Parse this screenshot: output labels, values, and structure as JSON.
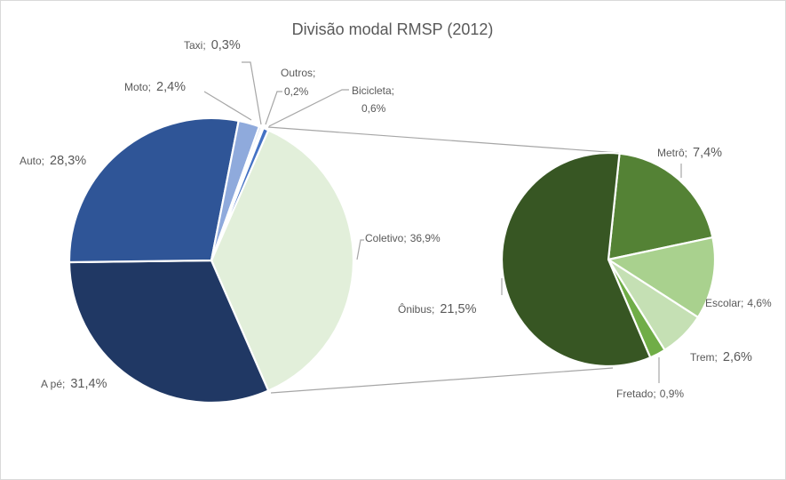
{
  "chart_data": {
    "type": "pie",
    "subtype": "pie-of-pie",
    "title": "Divisão modal RMSP (2012)",
    "unit": "%",
    "primary": {
      "categories": [
        "Coletivo",
        "A pé",
        "Auto",
        "Moto",
        "Taxi",
        "Outros",
        "Bicicleta"
      ],
      "values": [
        36.9,
        31.4,
        28.3,
        2.4,
        0.3,
        0.2,
        0.6
      ],
      "labels": [
        {
          "name": "Coletivo;",
          "value": "36,9%"
        },
        {
          "name": "A pé;",
          "value": "31,4%"
        },
        {
          "name": "Auto;",
          "value": "28,3%"
        },
        {
          "name": "Moto;",
          "value": "2,4%"
        },
        {
          "name": "Taxi;",
          "value": "0,3%"
        },
        {
          "name": "Outros;",
          "value": "0,2%"
        },
        {
          "name": "Bicicleta;",
          "value": "0,6%"
        }
      ],
      "colors": [
        "#E2EFDA",
        "#203864",
        "#2F5597",
        "#8FAADC",
        "#DAE3F3",
        "#B4C7E7",
        "#4472C4"
      ]
    },
    "secondary": {
      "parent": "Coletivo",
      "categories": [
        "Metrô",
        "Escolar",
        "Trem",
        "Fretado",
        "Ônibus"
      ],
      "values": [
        7.4,
        4.6,
        2.6,
        0.9,
        21.5
      ],
      "labels": [
        {
          "name": "Metrô;",
          "value": "7,4%"
        },
        {
          "name": "Escolar;",
          "value": "4,6%"
        },
        {
          "name": "Trem;",
          "value": "2,6%"
        },
        {
          "name": "Fretado;",
          "value": "0,9%"
        },
        {
          "name": "Ônibus;",
          "value": "21,5%"
        }
      ],
      "colors": [
        "#548235",
        "#A9D18E",
        "#C5E0B4",
        "#70AD47",
        "#375623"
      ]
    },
    "legend": "none",
    "grid": false
  }
}
